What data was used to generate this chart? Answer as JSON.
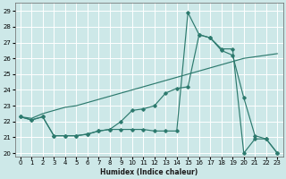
{
  "xlabel": "Humidex (Indice chaleur)",
  "bg_color": "#cde8e8",
  "line_color": "#2d7a6e",
  "grid_color": "#b8d8d8",
  "xlim": [
    -0.5,
    23.5
  ],
  "ylim": [
    19.8,
    29.5
  ],
  "yticks": [
    20,
    21,
    22,
    23,
    24,
    25,
    26,
    27,
    28,
    29
  ],
  "xticks": [
    0,
    1,
    2,
    3,
    4,
    5,
    6,
    7,
    8,
    9,
    10,
    11,
    12,
    13,
    14,
    15,
    16,
    17,
    18,
    19,
    20,
    21,
    22,
    23
  ],
  "curve1_x": [
    0,
    1,
    2,
    3,
    4,
    5,
    6,
    7,
    8,
    9,
    10,
    11,
    12,
    13,
    14,
    15,
    16,
    17,
    18,
    19,
    20,
    21,
    22,
    23
  ],
  "curve1_y": [
    22.3,
    22.1,
    22.3,
    21.1,
    21.1,
    21.1,
    21.2,
    21.4,
    21.5,
    22.0,
    22.7,
    22.8,
    23.0,
    23.8,
    24.1,
    24.2,
    27.5,
    27.3,
    26.5,
    26.2,
    23.5,
    21.1,
    20.9,
    20.0
  ],
  "curve2_x": [
    0,
    1,
    2,
    3,
    4,
    5,
    6,
    7,
    8,
    9,
    10,
    11,
    12,
    13,
    14,
    15,
    16,
    17,
    18,
    19,
    20,
    21,
    22,
    23
  ],
  "curve2_y": [
    22.3,
    22.2,
    22.5,
    22.7,
    22.9,
    23.0,
    23.2,
    23.4,
    23.6,
    23.8,
    24.0,
    24.2,
    24.4,
    24.6,
    24.8,
    25.0,
    25.2,
    25.4,
    25.6,
    25.8,
    26.0,
    26.1,
    26.2,
    26.3
  ],
  "curve3_x": [
    0,
    1,
    2,
    3,
    4,
    5,
    6,
    7,
    8,
    9,
    10,
    11,
    12,
    13,
    14,
    15,
    16,
    17,
    18,
    19,
    20,
    21,
    22,
    23
  ],
  "curve3_y": [
    22.3,
    22.1,
    22.3,
    21.1,
    21.1,
    21.1,
    21.2,
    21.4,
    21.5,
    21.5,
    21.5,
    21.5,
    21.4,
    21.4,
    21.4,
    28.9,
    27.5,
    27.3,
    26.6,
    26.6,
    20.0,
    20.9,
    20.9,
    20.0
  ]
}
